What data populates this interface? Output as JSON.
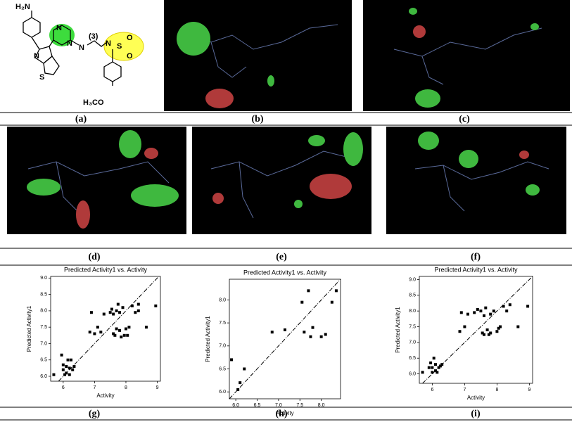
{
  "panel_labels": [
    "(a)",
    "(b)",
    "(c)",
    "(d)",
    "(e)",
    "(f)",
    "(g)",
    "(h)",
    "(i)"
  ],
  "molecule": {
    "labels": [
      "H₂N",
      "N",
      "N",
      "N",
      "S",
      "N",
      "(3)",
      "N",
      "S",
      "O",
      "O",
      "H₃CO"
    ]
  },
  "chart_data": [
    {
      "type": "scatter",
      "title": "Predicted Activity1 vs. Activity",
      "x_label": "Activity",
      "y_label": "Predicted Activity1",
      "color": "#000000",
      "xlim": [
        5.6,
        9.1
      ],
      "ylim": [
        5.85,
        9.05
      ],
      "xticks": [
        6,
        7,
        8,
        9
      ],
      "yticks": [
        {
          "value": 6,
          "label": "6.0"
        },
        {
          "value": 6.5,
          "label": "6.5"
        },
        {
          "value": 7,
          "label": "7.0"
        },
        {
          "value": 7.5,
          "label": "7.5"
        },
        {
          "value": 8,
          "label": "8.0"
        },
        {
          "value": 8.5,
          "label": "8.5"
        },
        {
          "value": 9,
          "label": "9.0"
        }
      ],
      "x": [
        5.7,
        5.95,
        6.0,
        6.0,
        6.05,
        6.1,
        6.1,
        6.15,
        6.2,
        6.2,
        6.25,
        6.3,
        6.35,
        6.85,
        6.9,
        7.0,
        7.1,
        7.2,
        7.3,
        7.5,
        7.55,
        7.6,
        7.6,
        7.65,
        7.7,
        7.7,
        7.75,
        7.8,
        7.8,
        7.85,
        7.9,
        7.95,
        8.0,
        8.05,
        8.1,
        8.2,
        8.3,
        8.4,
        8.4,
        8.65,
        8.95
      ],
      "values": [
        6.05,
        6.65,
        6.35,
        6.2,
        6.05,
        6.1,
        6.3,
        6.5,
        6.05,
        6.25,
        6.5,
        6.2,
        6.3,
        7.35,
        7.95,
        7.3,
        7.5,
        7.35,
        7.9,
        7.95,
        8.05,
        7.9,
        7.3,
        7.25,
        8.0,
        7.45,
        8.2,
        7.95,
        7.4,
        7.2,
        8.1,
        7.25,
        7.45,
        7.25,
        7.5,
        8.15,
        7.95,
        8.2,
        8.0,
        7.5,
        8.15
      ]
    },
    {
      "type": "scatter",
      "title": "Predicted Activity1 vs. Activity",
      "x_label": "Activity",
      "y_label": "Predicted Activity1",
      "color": "#000000",
      "xlim": [
        5.85,
        8.45
      ],
      "ylim": [
        5.85,
        8.45
      ],
      "xticks": [
        {
          "value": 6,
          "label": "6.0"
        },
        {
          "value": 6.5,
          "label": "6.5"
        },
        {
          "value": 7,
          "label": "7.0"
        },
        {
          "value": 7.5,
          "label": "7.5"
        },
        {
          "value": 8,
          "label": "8.0"
        }
      ],
      "yticks": [
        {
          "value": 6,
          "label": "6.0"
        },
        {
          "value": 6.5,
          "label": "6.5"
        },
        {
          "value": 7,
          "label": "7.0"
        },
        {
          "value": 7.5,
          "label": "7.5"
        },
        {
          "value": 8,
          "label": "8.0"
        }
      ],
      "x": [
        5.9,
        6.05,
        6.1,
        6.2,
        6.85,
        7.15,
        7.55,
        7.6,
        7.7,
        7.75,
        7.8,
        8.0,
        8.1,
        8.25,
        8.35
      ],
      "values": [
        6.7,
        6.05,
        6.2,
        6.5,
        7.3,
        7.35,
        7.95,
        7.3,
        8.2,
        7.2,
        7.4,
        7.2,
        7.25,
        7.95,
        8.2
      ]
    },
    {
      "type": "scatter",
      "title": "Predicted Activity1 vs. Activity",
      "x_label": "Activity",
      "y_label": "Predicted Activity1",
      "color": "#000000",
      "xlim": [
        5.6,
        9.1
      ],
      "ylim": [
        5.7,
        9.1
      ],
      "xticks": [
        6,
        7,
        8,
        9
      ],
      "yticks": [
        {
          "value": 6,
          "label": "6.0"
        },
        {
          "value": 6.5,
          "label": "6.5"
        },
        {
          "value": 7,
          "label": "7.0"
        },
        {
          "value": 7.5,
          "label": "7.5"
        },
        {
          "value": 8,
          "label": "8.0"
        },
        {
          "value": 8.5,
          "label": "8.5"
        },
        {
          "value": 9,
          "label": "9.0"
        }
      ],
      "x": [
        5.7,
        5.9,
        5.95,
        6.0,
        6.0,
        6.05,
        6.1,
        6.1,
        6.15,
        6.2,
        6.25,
        6.3,
        6.85,
        6.9,
        7.0,
        7.1,
        7.3,
        7.4,
        7.5,
        7.55,
        7.6,
        7.6,
        7.65,
        7.7,
        7.75,
        7.8,
        7.8,
        7.9,
        8.0,
        8.05,
        8.1,
        8.2,
        8.3,
        8.4,
        8.65,
        8.95
      ],
      "values": [
        6.05,
        6.2,
        6.35,
        6.05,
        6.2,
        6.5,
        6.1,
        6.3,
        6.05,
        6.2,
        6.25,
        6.3,
        7.35,
        7.95,
        7.5,
        7.9,
        7.95,
        8.05,
        8.0,
        7.3,
        7.25,
        7.85,
        8.1,
        7.4,
        7.25,
        7.9,
        7.3,
        8.0,
        7.35,
        7.45,
        7.5,
        8.15,
        8.0,
        8.2,
        7.5,
        8.15
      ]
    }
  ]
}
